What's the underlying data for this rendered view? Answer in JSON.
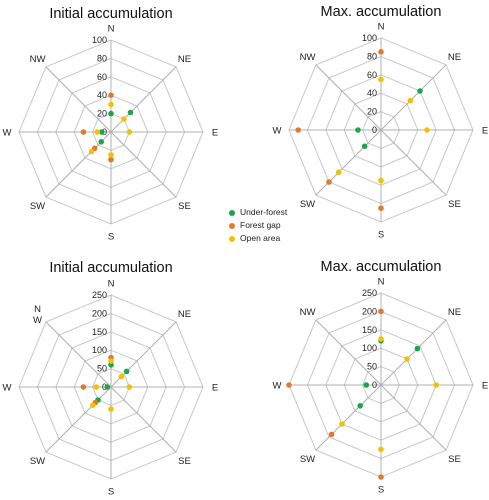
{
  "legend": {
    "placement": "center",
    "items": [
      {
        "label": "Under-forest",
        "color": "#1aa64a"
      },
      {
        "label": "Forest gap",
        "color": "#e07a2e"
      },
      {
        "label": "Open area",
        "color": "#f2c100"
      }
    ]
  },
  "chart_data": [
    {
      "type": "radar",
      "title": "Initial accumulation",
      "directions": [
        "N",
        "NE",
        "E",
        "SE",
        "S",
        "SW",
        "W",
        "NW"
      ],
      "rlim": [
        0,
        100
      ],
      "ticks": [
        "0",
        "20",
        "40",
        "60",
        "80",
        "100"
      ],
      "tick_values": [
        0,
        20,
        40,
        60,
        80,
        100
      ],
      "series": [
        {
          "name": "Under-forest",
          "values": [
            20,
            30,
            0,
            0,
            0,
            15,
            10,
            0
          ]
        },
        {
          "name": "Forest gap",
          "values": [
            40,
            0,
            0,
            0,
            30,
            25,
            30,
            0
          ]
        },
        {
          "name": "Open area",
          "values": [
            30,
            20,
            20,
            0,
            25,
            30,
            15,
            0
          ]
        }
      ]
    },
    {
      "type": "radar",
      "title": "Max. accumulation",
      "directions": [
        "N",
        "NE",
        "E",
        "SE",
        "S",
        "SW",
        "W",
        "NW"
      ],
      "rlim": [
        0,
        100
      ],
      "ticks": [
        "0",
        "20",
        "40",
        "60",
        "80",
        "100"
      ],
      "tick_values": [
        0,
        20,
        40,
        60,
        80,
        100
      ],
      "series": [
        {
          "name": "Under-forest",
          "values": [
            0,
            60,
            0,
            0,
            0,
            25,
            25,
            0
          ]
        },
        {
          "name": "Forest gap",
          "values": [
            85,
            0,
            0,
            0,
            85,
            80,
            90,
            0
          ]
        },
        {
          "name": "Open area",
          "values": [
            55,
            45,
            50,
            0,
            55,
            65,
            0,
            0
          ]
        }
      ]
    },
    {
      "type": "radar",
      "title": "Initial accumulation",
      "directions": [
        "N",
        "NE",
        "E",
        "SE",
        "S",
        "SW",
        "W",
        "NW"
      ],
      "direction_labels": [
        "N",
        "NE",
        "E",
        "SE",
        "S",
        "SW",
        "W",
        "N\nW"
      ],
      "rlim": [
        0,
        250
      ],
      "ticks": [
        "0",
        "50",
        "100",
        "150",
        "200",
        "250"
      ],
      "tick_values": [
        0,
        50,
        100,
        150,
        200,
        250
      ],
      "series": [
        {
          "name": "Under-forest",
          "values": [
            60,
            60,
            0,
            0,
            0,
            50,
            10,
            0
          ]
        },
        {
          "name": "Forest gap",
          "values": [
            80,
            0,
            0,
            0,
            0,
            60,
            75,
            0
          ]
        },
        {
          "name": "Open area",
          "values": [
            70,
            40,
            50,
            0,
            60,
            70,
            40,
            0
          ]
        }
      ]
    },
    {
      "type": "radar",
      "title": "Max. accumulation",
      "directions": [
        "N",
        "NE",
        "E",
        "SE",
        "S",
        "SW",
        "W",
        "NW"
      ],
      "rlim": [
        0,
        250
      ],
      "ticks": [
        "0",
        "50",
        "100",
        "150",
        "200",
        "250"
      ],
      "tick_values": [
        0,
        50,
        100,
        150,
        200,
        250
      ],
      "series": [
        {
          "name": "Under-forest",
          "values": [
            120,
            140,
            0,
            0,
            0,
            80,
            40,
            0
          ]
        },
        {
          "name": "Forest gap",
          "values": [
            200,
            0,
            0,
            0,
            250,
            190,
            250,
            0
          ]
        },
        {
          "name": "Open area",
          "values": [
            125,
            100,
            150,
            0,
            175,
            150,
            0,
            0
          ]
        }
      ]
    }
  ]
}
